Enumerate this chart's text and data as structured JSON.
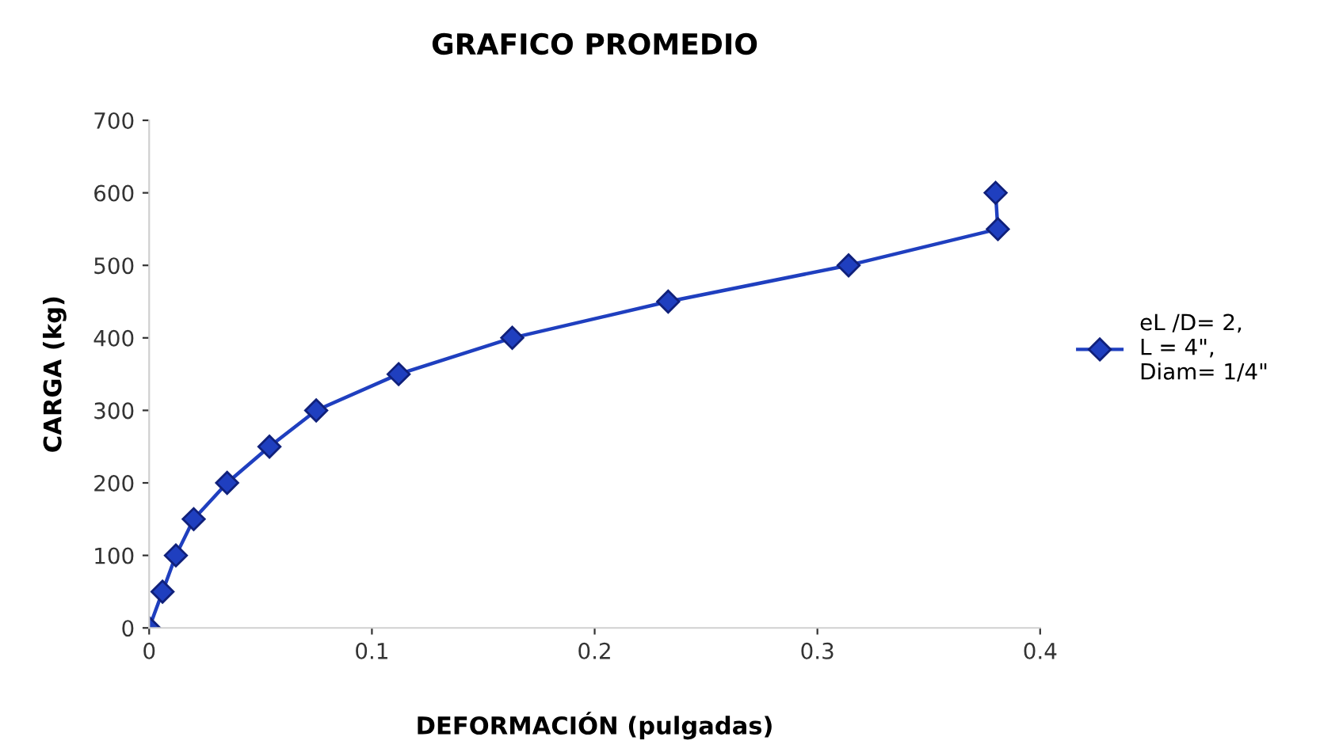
{
  "chart_data": {
    "type": "line",
    "title": "GRAFICO PROMEDIO",
    "xlabel": "DEFORMACIÓN (pulgadas)",
    "ylabel": "CARGA (kg)",
    "series": [
      {
        "name": "eL /D= 2,\nL = 4\",\nDiam= 1/4\"",
        "color": "#1f3fbf",
        "x": [
          0.0,
          0.006,
          0.012,
          0.02,
          0.035,
          0.054,
          0.075,
          0.112,
          0.163,
          0.233,
          0.314,
          0.381,
          0.38
        ],
        "values": [
          0,
          50,
          100,
          150,
          200,
          250,
          300,
          350,
          400,
          450,
          500,
          550,
          600
        ]
      }
    ],
    "xlim": [
      0,
      0.4
    ],
    "xticks": [
      0,
      0.1,
      0.2,
      0.3,
      0.4
    ],
    "ylim": [
      0,
      700
    ],
    "yticks": [
      0,
      100,
      200,
      300,
      400,
      500,
      600,
      700
    ],
    "marker": "diamond",
    "line_style": "solid",
    "grid": false,
    "legend": "right"
  }
}
